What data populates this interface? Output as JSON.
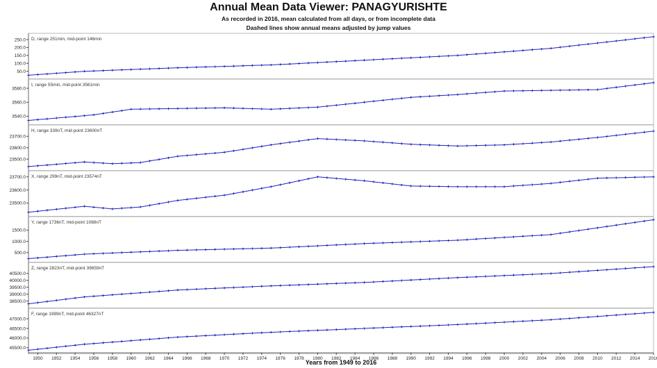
{
  "title": "Annual Mean Data Viewer: PANAGYURISHTE",
  "subtitle_1": "As recorded in 2016, mean calculated from all days, or from incomplete data",
  "subtitle_2": "Dashed lines show annual means adjusted by jump values",
  "chart_data": {
    "type": "line",
    "xlabel": "Years from 1949 to 2016",
    "x_start": 1949,
    "x_end": 2016,
    "x_ticks": [
      1950,
      1952,
      1954,
      1956,
      1958,
      1960,
      1962,
      1964,
      1966,
      1968,
      1970,
      1972,
      1974,
      1976,
      1978,
      1980,
      1982,
      1984,
      1986,
      1988,
      1990,
      1992,
      1994,
      1996,
      1998,
      2000,
      2002,
      2004,
      2006,
      2008,
      2010,
      2012,
      2014,
      2016
    ],
    "line_color": "#2020c0",
    "grid": false,
    "panels": [
      {
        "id": "D",
        "label": "D, range 251min, mid-point 146min",
        "ylim": [
          20,
          272
        ],
        "yticks": [
          50,
          100,
          150,
          200,
          250
        ],
        "tick_labels": [
          "50.0",
          "100.0",
          "150.0",
          "200.0",
          "250.0"
        ],
        "anchors": [
          [
            1949,
            25
          ],
          [
            1955,
            50
          ],
          [
            1965,
            72
          ],
          [
            1975,
            90
          ],
          [
            1985,
            120
          ],
          [
            1995,
            150
          ],
          [
            2005,
            195
          ],
          [
            2016,
            268
          ]
        ]
      },
      {
        "id": "I",
        "label": "I, range 55min, mid-point 3561min",
        "ylim": [
          3532,
          3589
        ],
        "yticks": [
          3540,
          3560,
          3580
        ],
        "tick_labels": [
          "3540.0",
          "3560.0",
          "3580.0"
        ],
        "anchors": [
          [
            1949,
            3534
          ],
          [
            1956,
            3542
          ],
          [
            1960,
            3550
          ],
          [
            1965,
            3551
          ],
          [
            1970,
            3552
          ],
          [
            1975,
            3550
          ],
          [
            1980,
            3553
          ],
          [
            1985,
            3560
          ],
          [
            1990,
            3567
          ],
          [
            1995,
            3571
          ],
          [
            2000,
            3576
          ],
          [
            2005,
            3577
          ],
          [
            2010,
            3578
          ],
          [
            2016,
            3588
          ]
        ]
      },
      {
        "id": "H",
        "label": "H, range 339nT, mid-point 23600nT",
        "ylim": [
          23425,
          23775
        ],
        "yticks": [
          23500,
          23600,
          23700
        ],
        "tick_labels": [
          "23500.0",
          "23600.0",
          "23700.0"
        ],
        "anchors": [
          [
            1949,
            23435
          ],
          [
            1955,
            23475
          ],
          [
            1958,
            23460
          ],
          [
            1961,
            23470
          ],
          [
            1965,
            23525
          ],
          [
            1970,
            23560
          ],
          [
            1975,
            23625
          ],
          [
            1980,
            23680
          ],
          [
            1985,
            23660
          ],
          [
            1990,
            23630
          ],
          [
            1995,
            23615
          ],
          [
            2000,
            23625
          ],
          [
            2005,
            23650
          ],
          [
            2010,
            23690
          ],
          [
            2016,
            23745
          ]
        ]
      },
      {
        "id": "X",
        "label": "X, range 299nT, mid-point 23574nT",
        "ylim": [
          23420,
          23725
        ],
        "yticks": [
          23500,
          23600,
          23700
        ],
        "tick_labels": [
          "23500.0",
          "23600.0",
          "23700.0"
        ],
        "anchors": [
          [
            1949,
            23430
          ],
          [
            1955,
            23475
          ],
          [
            1958,
            23455
          ],
          [
            1961,
            23470
          ],
          [
            1965,
            23520
          ],
          [
            1970,
            23560
          ],
          [
            1975,
            23625
          ],
          [
            1980,
            23700
          ],
          [
            1985,
            23670
          ],
          [
            1990,
            23630
          ],
          [
            1995,
            23625
          ],
          [
            2000,
            23625
          ],
          [
            2005,
            23650
          ],
          [
            2010,
            23690
          ],
          [
            2016,
            23700
          ]
        ]
      },
      {
        "id": "Y",
        "label": "Y, range 1736nT, mid-point 1088nT",
        "ylim": [
          200,
          1975
        ],
        "yticks": [
          500,
          1000,
          1500
        ],
        "tick_labels": [
          "500.0",
          "1000.0",
          "1500.0"
        ],
        "anchors": [
          [
            1949,
            230
          ],
          [
            1955,
            430
          ],
          [
            1965,
            600
          ],
          [
            1975,
            700
          ],
          [
            1985,
            900
          ],
          [
            1995,
            1050
          ],
          [
            2005,
            1300
          ],
          [
            2016,
            1960
          ]
        ]
      },
      {
        "id": "Z",
        "label": "Z, range 2823nT, mid-point 39659nT",
        "ylim": [
          38200,
          41100
        ],
        "yticks": [
          38500,
          39000,
          39500,
          40000,
          40500
        ],
        "tick_labels": [
          "38500.0",
          "39000.0",
          "39500.0",
          "40000.0",
          "40500.0"
        ],
        "anchors": [
          [
            1949,
            38300
          ],
          [
            1955,
            38800
          ],
          [
            1965,
            39300
          ],
          [
            1975,
            39600
          ],
          [
            1985,
            39850
          ],
          [
            1995,
            40200
          ],
          [
            2005,
            40500
          ],
          [
            2016,
            41000
          ]
        ]
      },
      {
        "id": "F",
        "label": "F, range 1999nT, mid-point 46327nT",
        "ylim": [
          45330,
          47400
        ],
        "yticks": [
          45500,
          46000,
          46500,
          47000
        ],
        "tick_labels": [
          "45500.0",
          "46000.0",
          "46500.0",
          "47000.0"
        ],
        "anchors": [
          [
            1949,
            45370
          ],
          [
            1955,
            45680
          ],
          [
            1965,
            46050
          ],
          [
            1975,
            46300
          ],
          [
            1985,
            46500
          ],
          [
            1995,
            46700
          ],
          [
            2005,
            46950
          ],
          [
            2016,
            47330
          ]
        ]
      }
    ]
  }
}
